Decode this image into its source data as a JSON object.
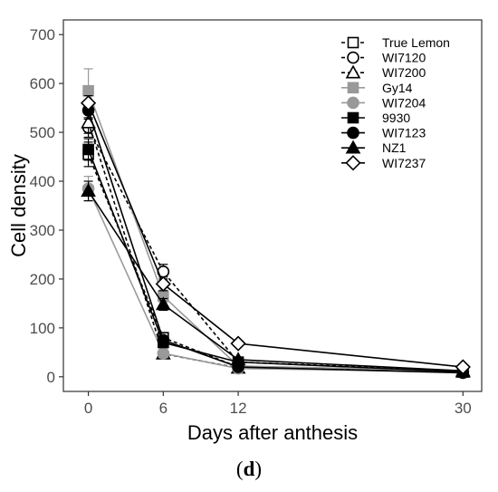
{
  "chart_data": {
    "type": "line",
    "xlabel": "Days after anthesis",
    "ylabel": "Cell density",
    "x": [
      0,
      6,
      12,
      30
    ],
    "xticks": [
      "0",
      "6",
      "12",
      "30"
    ],
    "yticks": [
      "0",
      "100",
      "200",
      "300",
      "400",
      "500",
      "600",
      "700"
    ],
    "xlim": [
      -2,
      31.5
    ],
    "ylim": [
      -30,
      730
    ],
    "grid": false,
    "legend_position": "top-right",
    "series": [
      {
        "name": "True Lemon",
        "values": [
          455,
          80,
          20,
          10
        ],
        "errors": [
          25,
          8,
          3,
          2
        ],
        "color": "#000000",
        "dash": "4,3",
        "marker": "square-open"
      },
      {
        "name": "WI7120",
        "values": [
          510,
          215,
          30,
          12
        ],
        "errors": [
          20,
          15,
          3,
          2
        ],
        "color": "#000000",
        "dash": "4,3",
        "marker": "circle-open"
      },
      {
        "name": "WI7200",
        "values": [
          520,
          47,
          18,
          10
        ],
        "errors": [
          22,
          5,
          3,
          2
        ],
        "color": "#000000",
        "dash": "4,3",
        "marker": "triangle-open"
      },
      {
        "name": "Gy14",
        "values": [
          585,
          165,
          22,
          12
        ],
        "errors": [
          45,
          12,
          3,
          2
        ],
        "color": "#999999",
        "dash": "",
        "marker": "square"
      },
      {
        "name": "WI7204",
        "values": [
          385,
          48,
          17,
          10
        ],
        "errors": [
          25,
          5,
          3,
          2
        ],
        "color": "#999999",
        "dash": "",
        "marker": "circle"
      },
      {
        "name": "9930",
        "values": [
          465,
          70,
          30,
          10
        ],
        "errors": [
          22,
          6,
          3,
          2
        ],
        "color": "#000000",
        "dash": "",
        "marker": "square"
      },
      {
        "name": "WI7123",
        "values": [
          545,
          75,
          20,
          8
        ],
        "errors": [
          18,
          6,
          3,
          2
        ],
        "color": "#000000",
        "dash": "",
        "marker": "circle"
      },
      {
        "name": "NZ1",
        "values": [
          380,
          148,
          35,
          12
        ],
        "errors": [
          20,
          12,
          3,
          2
        ],
        "color": "#000000",
        "dash": "",
        "marker": "triangle"
      },
      {
        "name": "WI7237",
        "values": [
          560,
          190,
          68,
          20
        ],
        "errors": [
          15,
          14,
          3,
          2
        ],
        "color": "#000000",
        "dash": "",
        "marker": "diamond-open"
      }
    ]
  },
  "panel_label": {
    "open": "(",
    "letter": "d",
    "close": ")"
  }
}
